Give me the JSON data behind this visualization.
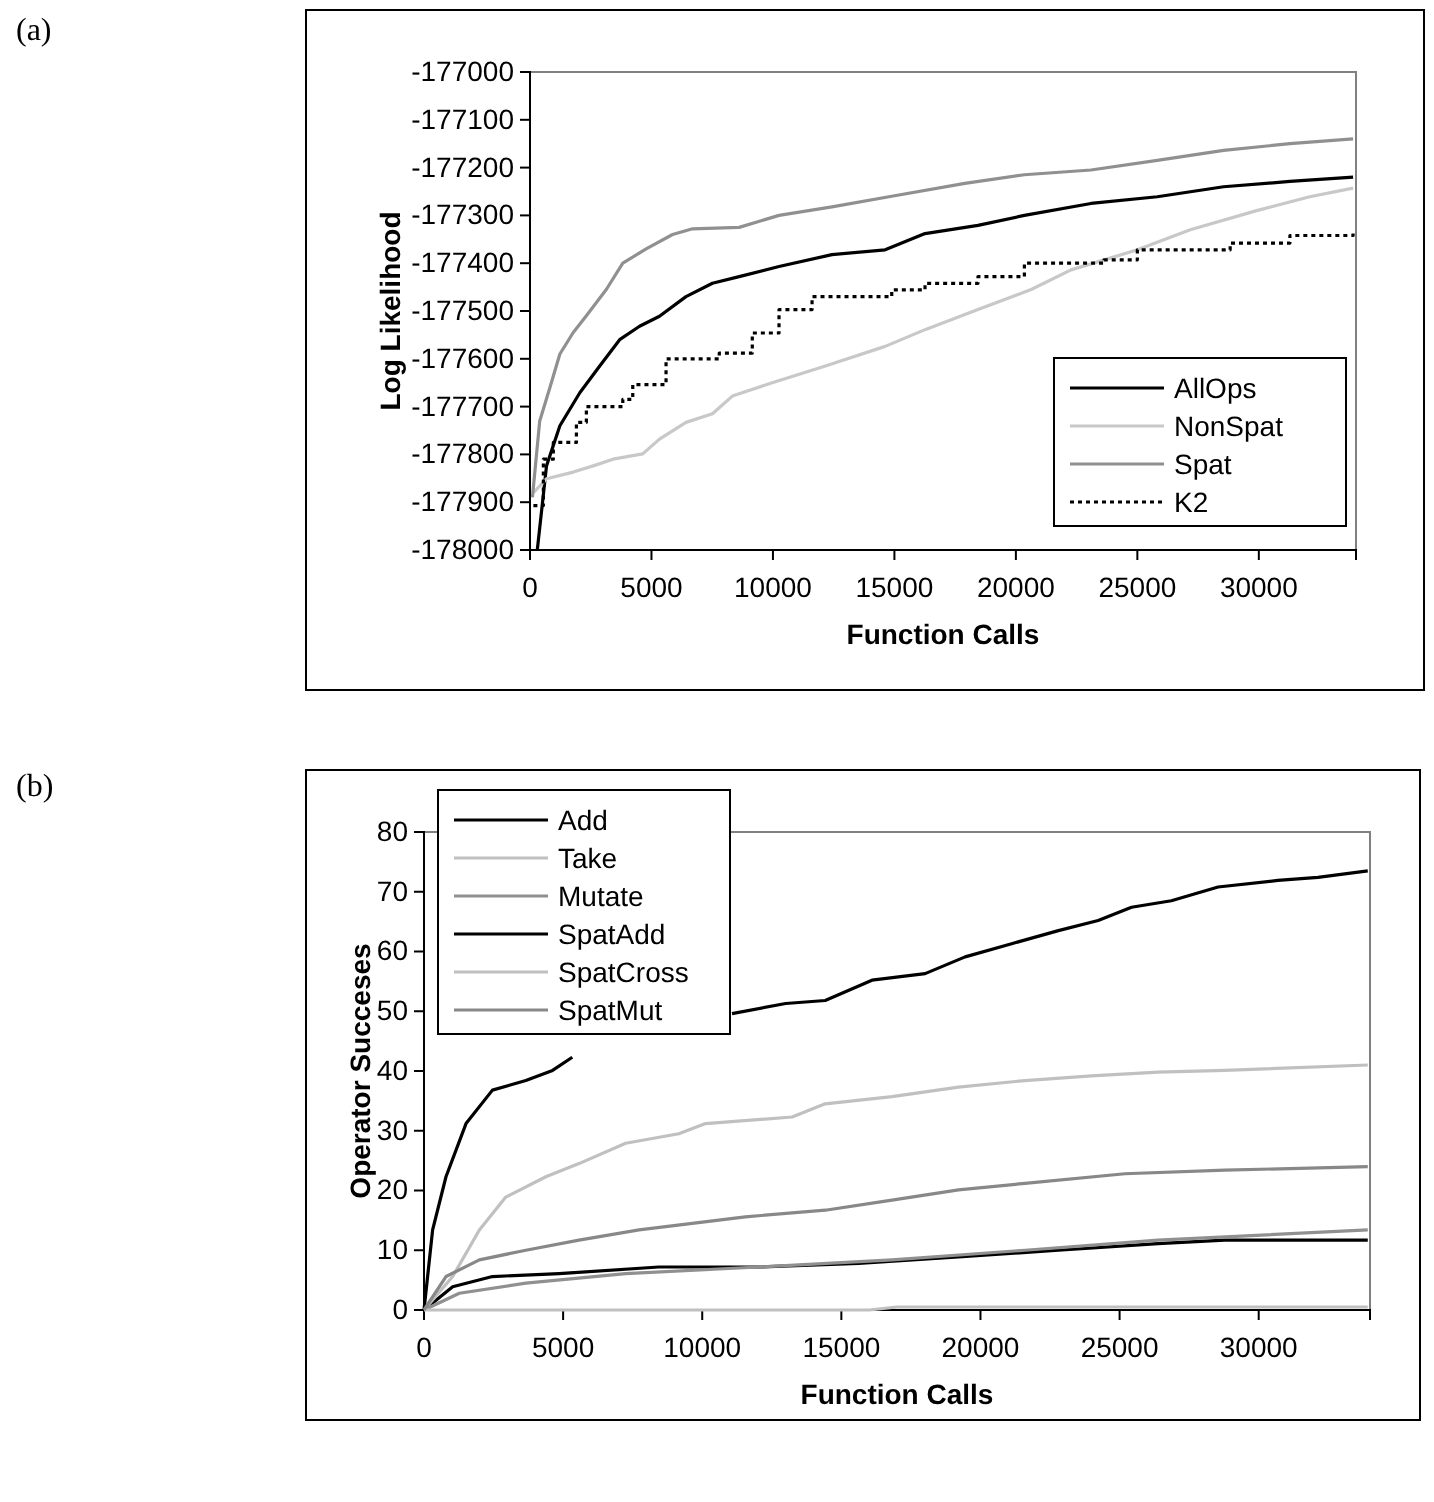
{
  "chart_data": [
    {
      "type": "line",
      "annotations": [
        "(a)"
      ],
      "xlabel": "Function Calls",
      "ylabel": "Log Likelihood",
      "xlim": [
        0,
        34000
      ],
      "xticks": [
        0,
        5000,
        10000,
        15000,
        20000,
        25000,
        30000
      ],
      "ylim": [
        -178000,
        -177000
      ],
      "yticks": [
        -178000,
        -177900,
        -177800,
        -177700,
        -177600,
        -177500,
        -177400,
        -177300,
        -177200,
        -177100,
        -177000
      ],
      "grid": false,
      "legend": "bottom right",
      "series": [
        {
          "name": "AllOps",
          "color": "#000000",
          "x": [
            300,
            680,
            1230,
            2050,
            2870,
            3690,
            4510,
            5330,
            6420,
            7510,
            8610,
            10250,
            12430,
            14620,
            16260,
            18440,
            20350,
            23090,
            25820,
            28550,
            31280,
            33880
          ],
          "values": [
            -178000,
            -177824,
            -177740,
            -177671,
            -177615,
            -177560,
            -177532,
            -177511,
            -177470,
            -177442,
            -177428,
            -177407,
            -177382,
            -177372,
            -177338,
            -177321,
            -177300,
            -177275,
            -177261,
            -177240,
            -177229,
            -177220
          ]
        },
        {
          "name": "NonSpat",
          "color": "#c8c8c8",
          "x": [
            140,
            680,
            1780,
            2600,
            3420,
            4640,
            5330,
            6420,
            7510,
            8330,
            9970,
            12160,
            14620,
            16260,
            18440,
            20630,
            22270,
            25000,
            27180,
            29910,
            32100,
            33880
          ],
          "values": [
            -177880,
            -177851,
            -177837,
            -177824,
            -177810,
            -177799,
            -177768,
            -177733,
            -177715,
            -177678,
            -177650,
            -177615,
            -177574,
            -177539,
            -177497,
            -177455,
            -177414,
            -177372,
            -177330,
            -177290,
            -177261,
            -177243
          ]
        },
        {
          "name": "Spat",
          "color": "#909090",
          "x": [
            100,
            400,
            820,
            1230,
            1780,
            2320,
            3140,
            3820,
            4780,
            5870,
            6690,
            8610,
            10250,
            12430,
            14890,
            17900,
            20350,
            23090,
            25820,
            28550,
            31280,
            33880
          ],
          "values": [
            -177890,
            -177730,
            -177660,
            -177590,
            -177545,
            -177510,
            -177455,
            -177400,
            -177370,
            -177340,
            -177328,
            -177325,
            -177300,
            -177282,
            -177260,
            -177233,
            -177215,
            -177205,
            -177185,
            -177164,
            -177150,
            -177140
          ]
        },
        {
          "name": "K2",
          "color": "#000000",
          "type": "step",
          "line_style": "dotted",
          "x": [
            140,
            550,
            960,
            1910,
            2320,
            3820,
            4230,
            5600,
            7790,
            9150,
            10250,
            11610,
            14890,
            16260,
            18440,
            20350,
            23630,
            25000,
            28820,
            31280,
            33880
          ],
          "values": [
            -177907,
            -177810,
            -177775,
            -177733,
            -177700,
            -177685,
            -177654,
            -177600,
            -177588,
            -177546,
            -177497,
            -177470,
            -177456,
            -177442,
            -177428,
            -177400,
            -177393,
            -177372,
            -177358,
            -177342,
            -177338
          ]
        }
      ]
    },
    {
      "type": "line",
      "annotations": [
        "(b)"
      ],
      "xlabel": "Function Calls",
      "ylabel": "Operator Succeses",
      "xlim": [
        0,
        34000
      ],
      "xticks": [
        0,
        5000,
        10000,
        15000,
        20000,
        25000,
        30000
      ],
      "ylim": [
        0,
        80
      ],
      "yticks": [
        0,
        10,
        20,
        30,
        40,
        50,
        60,
        70,
        80
      ],
      "grid": false,
      "legend": "top left",
      "series": [
        {
          "name": "Add",
          "color": "#000000",
          "x": [
            0,
            1030,
            2460,
            4860,
            8440,
            12030,
            15620,
            19210,
            22800,
            26380,
            28780,
            33920
          ],
          "values": [
            0,
            3.9,
            5.6,
            6.1,
            7.2,
            7.2,
            7.8,
            8.9,
            10,
            11.1,
            11.7,
            11.7
          ]
        },
        {
          "name": "Take",
          "color": "#c0c0c0",
          "x": [
            0,
            1030,
            1990,
            2940,
            4380,
            5570,
            7250,
            9160,
            10120,
            13230,
            14420,
            16820,
            19210,
            21600,
            23990,
            26380,
            28780,
            33920
          ],
          "values": [
            0,
            5.6,
            13.4,
            18.9,
            22.3,
            24.5,
            27.9,
            29.5,
            31.2,
            32.3,
            34.5,
            35.7,
            37.3,
            38.4,
            39.2,
            39.8,
            40.1,
            41
          ]
        },
        {
          "name": "Mutate",
          "color": "#909090",
          "x": [
            0,
            1270,
            3660,
            7250,
            12030,
            16820,
            21600,
            26380,
            33920
          ],
          "values": [
            0,
            2.8,
            4.5,
            6.1,
            7.2,
            8.4,
            10,
            11.7,
            13.4
          ]
        },
        {
          "name": "SpatAdd",
          "color": "#000000",
          "x": [
            0,
            310,
            790,
            1510,
            2460,
            3660,
            4620,
            5330,
            6290,
            7250,
            8440,
            10120,
            11070,
            13000,
            14420,
            16100,
            18010,
            19450,
            21120,
            22800,
            24230,
            25430,
            26860,
            28540,
            30690,
            32130,
            33920
          ],
          "values": [
            0,
            13.4,
            22.3,
            31.2,
            36.8,
            38.4,
            40.1,
            42.3,
            null,
            null,
            null,
            null,
            49.6,
            51.3,
            51.8,
            55.2,
            56.3,
            59.1,
            61.3,
            63.5,
            65.2,
            67.4,
            68.5,
            70.8,
            71.9,
            72.4,
            73.5
          ]
        },
        {
          "name": "SpatCross",
          "color": "#c0c0c0",
          "x": [
            0,
            16000,
            17000,
            33920
          ],
          "values": [
            0,
            0,
            0.5,
            0.5
          ]
        },
        {
          "name": "SpatMut",
          "color": "#888888",
          "x": [
            0,
            790,
            1990,
            3660,
            5570,
            7730,
            9640,
            11550,
            14420,
            16820,
            19210,
            21600,
            25190,
            28780,
            33920
          ],
          "values": [
            0,
            5.6,
            8.4,
            10,
            11.7,
            13.4,
            14.5,
            15.6,
            16.7,
            18.4,
            20.1,
            21.2,
            22.8,
            23.4,
            24
          ]
        }
      ]
    }
  ]
}
